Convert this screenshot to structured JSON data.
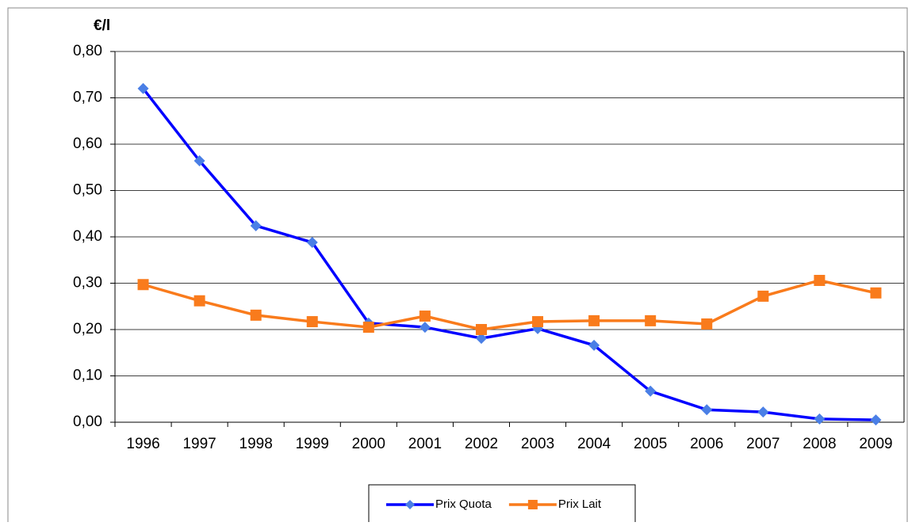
{
  "chart_data": {
    "type": "line",
    "y_label": "€/l",
    "categories": [
      "1996",
      "1997",
      "1998",
      "1999",
      "2000",
      "2001",
      "2002",
      "2003",
      "2004",
      "2005",
      "2006",
      "2007",
      "2008",
      "2009"
    ],
    "series": [
      {
        "name": "Prix Quota",
        "color": "#0000ff",
        "marker_color": "#4a7fe6",
        "marker": "diamond",
        "values": [
          0.72,
          0.564,
          0.424,
          0.388,
          0.214,
          0.205,
          0.181,
          0.202,
          0.166,
          0.067,
          0.027,
          0.022,
          0.007,
          0.005
        ]
      },
      {
        "name": "Prix Lait",
        "color": "#f97b1c",
        "marker_color": "#f97b1c",
        "marker": "square",
        "values": [
          0.297,
          0.262,
          0.231,
          0.217,
          0.205,
          0.229,
          0.2,
          0.217,
          0.219,
          0.219,
          0.212,
          0.272,
          0.306,
          0.279
        ]
      }
    ],
    "ylim": [
      0,
      0.8
    ],
    "yticks": [
      {
        "value": 0,
        "label": "0,00"
      },
      {
        "value": 0.1,
        "label": "0,10"
      },
      {
        "value": 0.2,
        "label": "0,20"
      },
      {
        "value": 0.3,
        "label": "0,30"
      },
      {
        "value": 0.4,
        "label": "0,40"
      },
      {
        "value": 0.5,
        "label": "0,50"
      },
      {
        "value": 0.6,
        "label": "0,60"
      },
      {
        "value": 0.7,
        "label": "0,70"
      },
      {
        "value": 0.8,
        "label": "0,80"
      }
    ],
    "grid": true,
    "legend": "bottom"
  }
}
